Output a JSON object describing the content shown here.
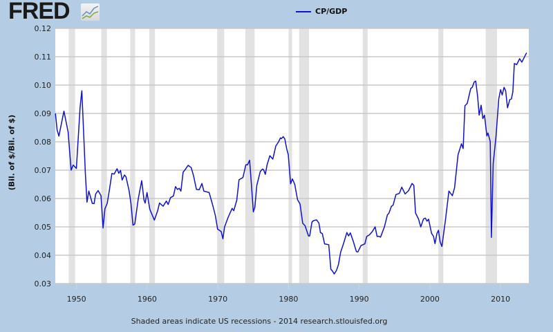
{
  "brand": {
    "logo_text": "FRED"
  },
  "footer": {
    "note": "Shaded areas indicate US recessions - 2014 research.stlouisfed.org"
  },
  "chart_data": {
    "type": "line",
    "title": "",
    "xlabel": "",
    "ylabel": "(Bil. of $/Bil. of $)",
    "xlim": [
      1947.0,
      2014.0
    ],
    "ylim": [
      0.03,
      0.12
    ],
    "grid": "horizontal",
    "legend_position": "top-center",
    "x_ticks": [
      "1950",
      "1960",
      "1970",
      "1980",
      "1990",
      "2000",
      "2010"
    ],
    "x_tick_values": [
      1950,
      1960,
      1970,
      1980,
      1990,
      2000,
      2010
    ],
    "y_ticks": [
      "0.03",
      "0.04",
      "0.05",
      "0.06",
      "0.07",
      "0.08",
      "0.09",
      "0.10",
      "0.11",
      "0.12"
    ],
    "y_tick_values": [
      0.03,
      0.04,
      0.05,
      0.06,
      0.07,
      0.08,
      0.09,
      0.1,
      0.11,
      0.12
    ],
    "colors": {
      "series": "#1010d0",
      "recession": "#e2e2e2",
      "grid": "#c8c8c8",
      "background": "#b4cce4"
    },
    "recessions": [
      [
        1948.9,
        1949.8
      ],
      [
        1953.5,
        1954.3
      ],
      [
        1957.6,
        1958.3
      ],
      [
        1960.3,
        1961.1
      ],
      [
        1969.9,
        1970.9
      ],
      [
        1973.9,
        1975.2
      ],
      [
        1980.0,
        1980.5
      ],
      [
        1981.5,
        1982.9
      ],
      [
        1990.5,
        1991.2
      ],
      [
        2001.2,
        2001.9
      ],
      [
        2007.9,
        2009.5
      ]
    ],
    "series": [
      {
        "name": "CP/GDP",
        "x": [
          1947.02,
          1947.25,
          1947.51,
          1948.22,
          1948.81,
          1949.24,
          1949.53,
          1949.98,
          1950.51,
          1950.76,
          1951.25,
          1951.48,
          1951.74,
          1952.23,
          1952.49,
          1952.71,
          1953.05,
          1953.47,
          1953.76,
          1954.02,
          1954.35,
          1954.67,
          1955.0,
          1955.32,
          1955.74,
          1955.98,
          1956.23,
          1956.46,
          1956.79,
          1957.01,
          1957.44,
          1957.7,
          1957.99,
          1958.25,
          1958.74,
          1959.23,
          1959.55,
          1959.72,
          1959.98,
          1960.37,
          1961.02,
          1961.5,
          1961.74,
          1962.26,
          1962.71,
          1962.97,
          1963.3,
          1963.72,
          1964.01,
          1964.28,
          1964.53,
          1964.77,
          1965.09,
          1965.35,
          1965.8,
          1966.23,
          1966.55,
          1966.97,
          1967.36,
          1967.75,
          1968.02,
          1968.51,
          1968.77,
          1969.32,
          1969.65,
          1969.97,
          1970.46,
          1970.72,
          1970.95,
          1971.44,
          1972.02,
          1972.25,
          1972.68,
          1973.0,
          1973.55,
          1973.97,
          1974.2,
          1974.49,
          1974.76,
          1975.02,
          1975.24,
          1975.51,
          1976.0,
          1976.32,
          1976.48,
          1976.71,
          1976.97,
          1977.36,
          1977.78,
          1978.2,
          1978.59,
          1978.86,
          1978.98,
          1979.25,
          1979.47,
          1979.74,
          1979.96,
          1980.29,
          1980.55,
          1980.88,
          1981.27,
          1981.62,
          1982.01,
          1982.34,
          1982.83,
          1982.99,
          1983.32,
          1983.54,
          1983.96,
          1984.3,
          1984.52,
          1984.78,
          1985.11,
          1985.69,
          1985.99,
          1986.25,
          1986.47,
          1986.8,
          1987.06,
          1987.38,
          1987.77,
          1988.26,
          1988.5,
          1988.75,
          1989.18,
          1989.6,
          1989.82,
          1990.25,
          1990.8,
          1991.06,
          1991.45,
          1991.87,
          1992.26,
          1992.53,
          1992.75,
          1993.02,
          1993.57,
          1993.99,
          1994.22,
          1994.55,
          1994.8,
          1995.2,
          1995.68,
          1996.02,
          1996.5,
          1996.99,
          1997.48,
          1997.73,
          1997.97,
          1998.39,
          1998.71,
          1999.1,
          1999.37,
          1999.59,
          1999.82,
          2000.24,
          2000.51,
          2000.73,
          2001.0,
          2001.22,
          2001.45,
          2001.71,
          2002.2,
          2002.69,
          2003.18,
          2003.5,
          2003.98,
          2004.47,
          2004.71,
          2004.96,
          2005.29,
          2005.78,
          2006.0,
          2006.27,
          2006.49,
          2006.76,
          2006.98,
          2007.25,
          2007.5,
          2007.73,
          2008.06,
          2008.22,
          2008.54,
          2008.71,
          2008.96,
          2009.35,
          2009.75,
          2010.01,
          2010.23,
          2010.5,
          2010.72,
          2010.99,
          2011.31,
          2011.54,
          2011.74,
          2011.96,
          2012.28,
          2012.71,
          2013.01,
          2013.69
        ],
        "y": [
          0.09,
          0.0842,
          0.082,
          0.0908,
          0.0835,
          0.07,
          0.0718,
          0.0706,
          0.0923,
          0.098,
          0.0688,
          0.0587,
          0.0626,
          0.0583,
          0.0582,
          0.0616,
          0.0628,
          0.061,
          0.0496,
          0.0564,
          0.0583,
          0.0632,
          0.0688,
          0.0686,
          0.0705,
          0.0689,
          0.0699,
          0.0665,
          0.0683,
          0.0676,
          0.0628,
          0.0583,
          0.0506,
          0.051,
          0.0599,
          0.0663,
          0.0595,
          0.0584,
          0.0621,
          0.0562,
          0.0524,
          0.0558,
          0.0584,
          0.0573,
          0.0591,
          0.0579,
          0.0603,
          0.0609,
          0.0642,
          0.0632,
          0.0636,
          0.0626,
          0.0693,
          0.0701,
          0.0717,
          0.0709,
          0.0681,
          0.0632,
          0.0631,
          0.0653,
          0.0626,
          0.0623,
          0.0621,
          0.0572,
          0.0539,
          0.0492,
          0.0484,
          0.0458,
          0.05,
          0.0533,
          0.0565,
          0.0557,
          0.0594,
          0.0666,
          0.0674,
          0.0719,
          0.0719,
          0.0735,
          0.0646,
          0.0553,
          0.0569,
          0.0646,
          0.0695,
          0.0704,
          0.0701,
          0.0685,
          0.0719,
          0.0751,
          0.0739,
          0.0785,
          0.08,
          0.0814,
          0.0811,
          0.0818,
          0.081,
          0.0776,
          0.0755,
          0.0652,
          0.0669,
          0.065,
          0.0596,
          0.0581,
          0.0513,
          0.0504,
          0.0468,
          0.0468,
          0.0517,
          0.0522,
          0.0525,
          0.0513,
          0.048,
          0.0476,
          0.044,
          0.0437,
          0.0351,
          0.0343,
          0.0334,
          0.0347,
          0.0367,
          0.0411,
          0.044,
          0.048,
          0.0468,
          0.0479,
          0.0448,
          0.0413,
          0.0412,
          0.0434,
          0.044,
          0.0466,
          0.0472,
          0.0484,
          0.05,
          0.0466,
          0.0467,
          0.0464,
          0.05,
          0.0542,
          0.0549,
          0.0572,
          0.0577,
          0.0614,
          0.0618,
          0.064,
          0.0616,
          0.0628,
          0.0653,
          0.0646,
          0.0549,
          0.0528,
          0.05,
          0.0528,
          0.0531,
          0.052,
          0.0527,
          0.0477,
          0.0467,
          0.0441,
          0.0477,
          0.0488,
          0.0447,
          0.0431,
          0.0524,
          0.0626,
          0.061,
          0.0638,
          0.0754,
          0.0793,
          0.0776,
          0.0927,
          0.0935,
          0.0988,
          0.0992,
          0.1011,
          0.1014,
          0.0959,
          0.0894,
          0.0929,
          0.0882,
          0.0894,
          0.0821,
          0.0831,
          0.0801,
          0.0463,
          0.0724,
          0.0817,
          0.0951,
          0.0984,
          0.0965,
          0.0992,
          0.098,
          0.092,
          0.0949,
          0.0951,
          0.0976,
          0.1076,
          0.1072,
          0.1093,
          0.1081,
          0.1114
        ]
      }
    ]
  }
}
